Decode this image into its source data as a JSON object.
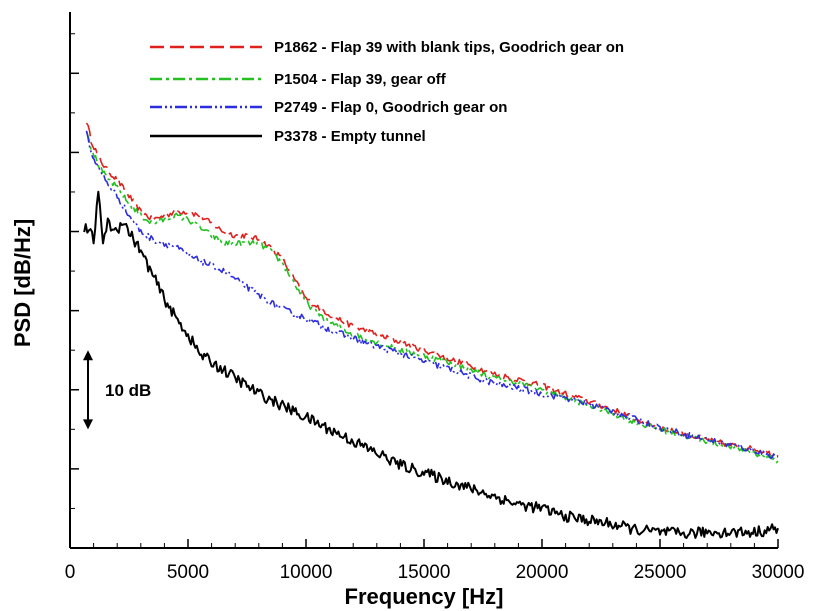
{
  "chart_data": {
    "type": "line",
    "title": "",
    "xlabel": "Frequency [Hz]",
    "ylabel": "PSD [dB/Hz]",
    "xlim": [
      0,
      30000
    ],
    "ylim": [
      0,
      68
    ],
    "x_ticks": [
      "0",
      "5000",
      "10000",
      "15000",
      "20000",
      "25000",
      "30000"
    ],
    "x_tick_values": [
      0,
      5000,
      10000,
      15000,
      20000,
      25000,
      30000
    ],
    "y_tick_values": [
      10,
      20,
      30,
      40,
      50,
      60
    ],
    "y_tick_labels_shown": false,
    "grid": false,
    "legend_position": "top-right",
    "annotation": {
      "text": "10 dB",
      "from": 15,
      "to": 25
    },
    "series": [
      {
        "name": "P1862 - Flap 39 with blank tips, Goodrich gear on",
        "color": "#e0201c",
        "dash": "dashed",
        "noise": 0.35,
        "x": [
          700,
          900,
          1200,
          1500,
          2000,
          2500,
          3000,
          3500,
          4000,
          4500,
          5000,
          5500,
          6000,
          6500,
          7000,
          7500,
          8000,
          8500,
          9000,
          9500,
          10000,
          11000,
          12000,
          13000,
          14000,
          15000,
          16000,
          17000,
          18000,
          19000,
          20000,
          21000,
          22000,
          23000,
          24000,
          25000,
          26000,
          27000,
          28000,
          29000,
          30000
        ],
        "y": [
          54,
          51.5,
          49.5,
          48,
          46.5,
          44.5,
          42.5,
          41.5,
          42,
          42.5,
          42.5,
          42,
          41,
          40,
          39.5,
          39.5,
          39,
          38,
          36.5,
          34,
          31.5,
          29.5,
          28,
          27,
          26,
          25,
          24,
          23,
          22,
          21.3,
          20.5,
          19.5,
          18.5,
          17.5,
          16.3,
          15.2,
          14.4,
          13.7,
          13,
          12.5,
          11.7
        ]
      },
      {
        "name": "P1504 - Flap 39, gear off",
        "color": "#22c020",
        "dash": "dashdot",
        "noise": 0.35,
        "x": [
          700,
          900,
          1200,
          1500,
          2000,
          2500,
          3000,
          3500,
          4000,
          4500,
          5000,
          5500,
          6000,
          6500,
          7000,
          7500,
          8000,
          8500,
          9000,
          9500,
          10000,
          11000,
          12000,
          13000,
          14000,
          15000,
          16000,
          17000,
          18000,
          19000,
          20000,
          21000,
          22000,
          23000,
          24000,
          25000,
          26000,
          27000,
          28000,
          29000,
          30000
        ],
        "y": [
          53,
          50.5,
          48.5,
          47,
          45.5,
          43.5,
          42,
          41,
          41.5,
          42,
          41.5,
          40.5,
          39.5,
          38.5,
          38.5,
          38.5,
          38.5,
          37.5,
          36,
          33.5,
          31,
          28.5,
          27,
          26,
          25,
          24.3,
          23.5,
          22.5,
          21.5,
          20.8,
          20,
          19,
          18,
          17,
          15.8,
          15,
          14.2,
          13.5,
          12.8,
          12,
          11
        ]
      },
      {
        "name": "P2749 - Flap 0, Goodrich gear on",
        "color": "#2c2ce0",
        "dash": "dashdotdot",
        "noise": 0.4,
        "x": [
          700,
          900,
          1200,
          1500,
          2000,
          2500,
          3000,
          3500,
          4000,
          4500,
          5000,
          5500,
          6000,
          6500,
          7000,
          7500,
          8000,
          8500,
          9000,
          9500,
          10000,
          11000,
          12000,
          13000,
          14000,
          15000,
          16000,
          17000,
          18000,
          19000,
          20000,
          21000,
          22000,
          23000,
          24000,
          25000,
          26000,
          27000,
          28000,
          29000,
          30000
        ],
        "y": [
          52.5,
          50,
          48,
          46.5,
          44.5,
          42,
          40,
          39,
          38.5,
          38,
          37,
          36.3,
          35.7,
          35,
          34,
          33,
          32,
          31,
          30.2,
          29.6,
          29,
          27.6,
          26.5,
          25.5,
          24.6,
          23.6,
          22.7,
          21.7,
          20.8,
          20.2,
          19.5,
          19,
          18.2,
          17.3,
          16.2,
          15.2,
          14.4,
          13.7,
          13,
          12.3,
          11.5
        ]
      },
      {
        "name": "P3378 - Empty tunnel",
        "color": "#000000",
        "dash": "solid",
        "noise": 0.7,
        "x": [
          600,
          800,
          1000,
          1200,
          1400,
          1600,
          1800,
          2000,
          2200,
          2500,
          3000,
          3500,
          4000,
          4500,
          5000,
          5500,
          6000,
          7000,
          8000,
          9000,
          10000,
          11000,
          12000,
          13000,
          14000,
          15000,
          16000,
          17000,
          18000,
          19000,
          20000,
          21000,
          22000,
          23000,
          24000,
          25000,
          26000,
          27000,
          28000,
          29000,
          30000
        ],
        "y": [
          40.5,
          40,
          39,
          44.5,
          39,
          41,
          40.5,
          40,
          41.5,
          40,
          37.5,
          34.5,
          31.5,
          29,
          27,
          24.5,
          23.5,
          21.5,
          19.5,
          18,
          16.5,
          15,
          13.5,
          12,
          10.5,
          9.5,
          8.5,
          7.5,
          6.5,
          5.5,
          5,
          4,
          3.5,
          3,
          2.3,
          2,
          1.8,
          2,
          2,
          2,
          2.5
        ]
      }
    ]
  }
}
